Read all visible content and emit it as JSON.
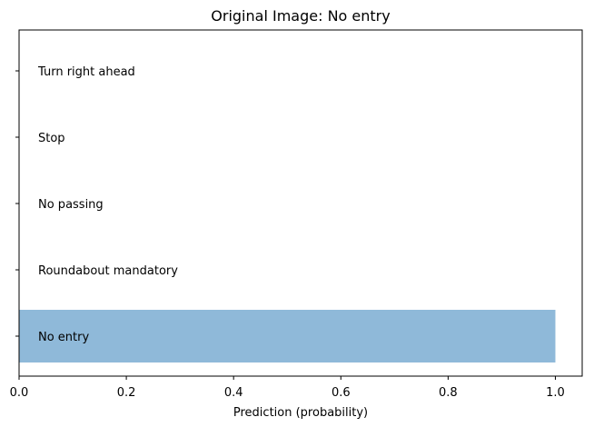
{
  "chart_data": {
    "type": "bar",
    "orientation": "horizontal",
    "title": "Original Image: No entry",
    "xlabel": "Prediction (probability)",
    "ylabel": "",
    "xlim": [
      0,
      1.05
    ],
    "xticks": [
      "0.0",
      "0.2",
      "0.4",
      "0.6",
      "0.8",
      "1.0"
    ],
    "xtick_values": [
      0,
      0.2,
      0.4,
      0.6,
      0.8,
      1.0
    ],
    "categories": [
      "No entry",
      "Roundabout mandatory",
      "No passing",
      "Stop",
      "Turn right ahead"
    ],
    "values": [
      1.0,
      0.0,
      0.0,
      0.0,
      0.0
    ],
    "bar_color": "#8fb9d9",
    "grid": false,
    "legend": "none"
  }
}
